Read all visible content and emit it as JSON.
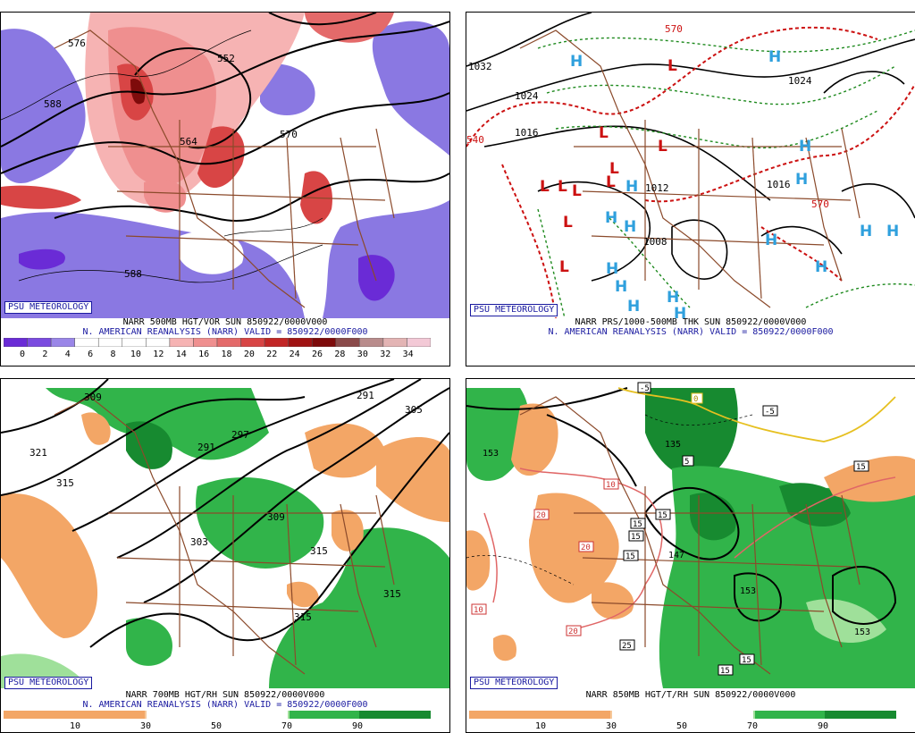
{
  "tag": "PSU METEOROLOGY",
  "panels": {
    "tl": {
      "title": "NARR 500MB HGT/VOR SUN 850922/0000V000",
      "subtitle": "N. AMERICAN REANALYSIS (NARR) VALID = 850922/0000F000",
      "contour_labels": [
        "576",
        "552",
        "588",
        "564",
        "570",
        "588"
      ],
      "scale_labels": [
        "0",
        "2",
        "4",
        "6",
        "8",
        "10",
        "12",
        "14",
        "16",
        "18",
        "20",
        "22",
        "24",
        "26",
        "28",
        "30",
        "32",
        "34"
      ],
      "scale_colors": [
        "#6a2bd6",
        "#7b4be0",
        "#9a86e8",
        "#ffffff",
        "#ffffff",
        "#ffffff",
        "#ffffff",
        "#f6b3b3",
        "#ef8f8f",
        "#e46a6a",
        "#d84545",
        "#c22626",
        "#a01313",
        "#7e0b0b",
        "#8a4a4a",
        "#b98c8c",
        "#e3b4b4",
        "#f3c9d6"
      ]
    },
    "tr": {
      "title": "NARR PRS/1000-500MB THK SUN 850922/0000V000",
      "subtitle": "N. AMERICAN REANALYSIS (NARR) VALID = 850922/0000F000",
      "contour_labels": [
        "1032",
        "1024",
        "1016",
        "1024",
        "1016",
        "1008",
        "1012",
        "570",
        "540",
        "570"
      ]
    },
    "bl": {
      "title": "NARR 700MB HGT/RH SUN 850922/0000V000",
      "subtitle": "N. AMERICAN REANALYSIS (NARR) VALID = 850922/0000F000",
      "contour_labels": [
        "309",
        "291",
        "321",
        "315",
        "297",
        "291",
        "305",
        "303",
        "309",
        "315",
        "315",
        "315"
      ],
      "scale_labels": [
        "10",
        "30",
        "50",
        "70",
        "90"
      ]
    },
    "br": {
      "title": "NARR 850MB HGT/T/RH SUN 850922/0000V000",
      "contour_labels": [
        "153",
        "135",
        "147",
        "153",
        "153",
        "-5",
        "10",
        "20",
        "20",
        "20",
        "10",
        "15",
        "15",
        "15",
        "15",
        "25",
        "15",
        "15",
        "15",
        "0",
        "-5",
        "5"
      ],
      "scale_labels": [
        "10",
        "30",
        "50",
        "70",
        "90"
      ]
    }
  },
  "rh_colors": [
    "#f3a666",
    "#f6c89a",
    "#ffffff",
    "#9fe09a",
    "#31b44a",
    "#178a30"
  ]
}
